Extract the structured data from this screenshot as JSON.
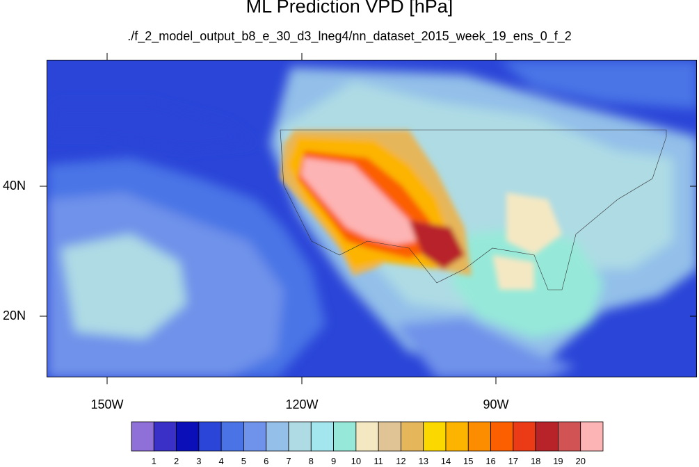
{
  "title": "ML Prediction VPD [hPa]",
  "subtitle": "./f_2_model_output_b8_e_30_d3_lneg4/nn_dataset_2015_week_19_ens_0_f_2",
  "lat_labels": [
    "40N",
    "20N"
  ],
  "lon_labels": [
    "150W",
    "120W",
    "90W"
  ],
  "colorbar": {
    "colors": [
      "#8f6fd8",
      "#3a2fc6",
      "#0a0fb8",
      "#2a45d8",
      "#4a74e6",
      "#6f92ea",
      "#93bfe9",
      "#aedbe4",
      "#a3e6ee",
      "#96e9d9",
      "#f4e8c3",
      "#e0c496",
      "#e6b65a",
      "#fbd900",
      "#fcb400",
      "#fc8c00",
      "#fb5f00",
      "#ea3a16",
      "#b8232a",
      "#d25353",
      "#fdb4b4"
    ],
    "labels": [
      "1",
      "2",
      "3",
      "4",
      "5",
      "6",
      "7",
      "8",
      "9",
      "10",
      "11",
      "12",
      "13",
      "14",
      "15",
      "16",
      "17",
      "18",
      "19",
      "20"
    ]
  }
}
